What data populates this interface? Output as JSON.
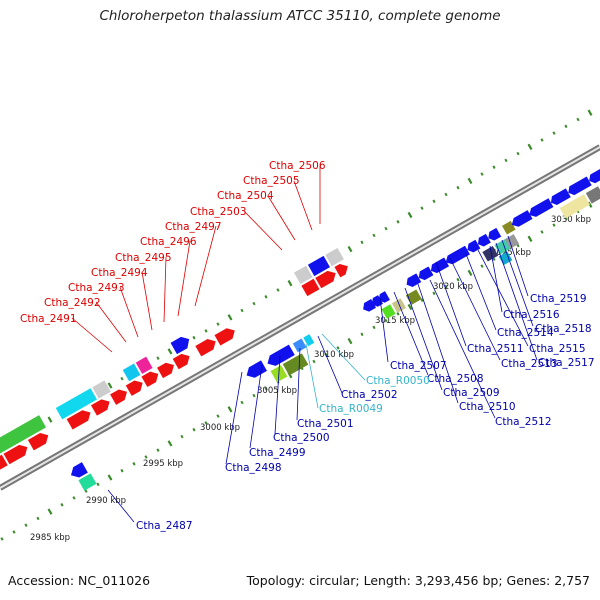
{
  "title": "Chloroherpeton thalassium ATCC 35110, complete genome",
  "footer": {
    "accession": "Accession: NC_011026",
    "summary": "Topology: circular; Length: 3,293,456 bp; Genes: 2,757"
  },
  "colors": {
    "upper_label": "#dd0000",
    "lower_label": "#0000aa",
    "rna_label": "#33b5cc",
    "backbone": "#888888",
    "tick": "#3a8a2a"
  },
  "scale_labels": [
    "2985 kbp",
    "2990 kbp",
    "2995 kbp",
    "3000 kbp",
    "3005 kbp",
    "3010 kbp",
    "3015 kbp",
    "3020 kbp",
    "3025 kbp",
    "3030 kbp"
  ],
  "upper_strand_genes": [
    "Ctha_2491",
    "Ctha_2492",
    "Ctha_2493",
    "Ctha_2494",
    "Ctha_2495",
    "Ctha_2496",
    "Ctha_2497",
    "Ctha_2503",
    "Ctha_2504",
    "Ctha_2505",
    "Ctha_2506"
  ],
  "lower_strand_genes": [
    "Ctha_2487",
    "Ctha_2498",
    "Ctha_2499",
    "Ctha_2500",
    "Ctha_2501",
    "Ctha_R0049",
    "Ctha_2502",
    "Ctha_R0050",
    "Ctha_2507",
    "Ctha_2508",
    "Ctha_2509",
    "Ctha_2510",
    "Ctha_2511",
    "Ctha_2512",
    "Ctha_2513",
    "Ctha_2514",
    "Ctha_2515",
    "Ctha_2516",
    "Ctha_2517",
    "Ctha_2518",
    "Ctha_2519"
  ],
  "rna_genes": [
    "Ctha_R0049",
    "Ctha_R0050"
  ]
}
